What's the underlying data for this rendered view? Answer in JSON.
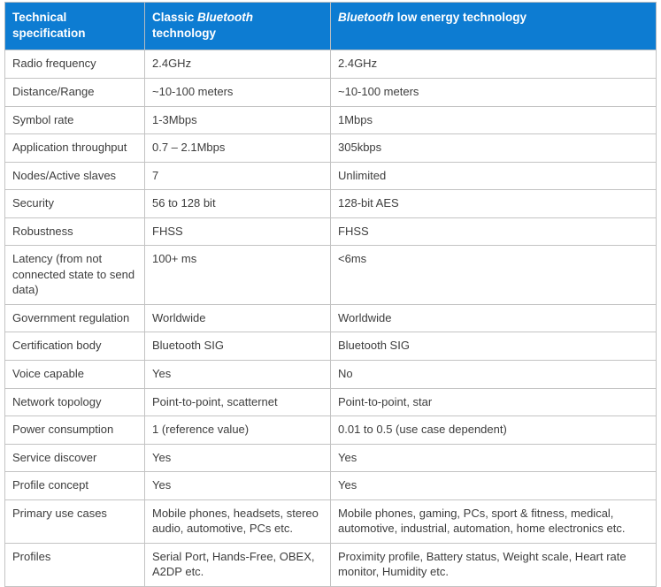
{
  "colors": {
    "header_bg": "#0d7cd2",
    "header_text": "#ffffff",
    "border": "#c3c3c3",
    "body_text": "#3d3d3d"
  },
  "table": {
    "header": [
      {
        "segments": [
          {
            "text": "Technical"
          },
          {
            "br": true
          },
          {
            "text": "specification"
          }
        ]
      },
      {
        "segments": [
          {
            "text": "Classic "
          },
          {
            "text": "Bluetooth",
            "italic": true
          },
          {
            "br": true
          },
          {
            "text": "technology"
          }
        ]
      },
      {
        "segments": [
          {
            "text": "Bluetooth",
            "italic": true
          },
          {
            "text": " low energy technology"
          }
        ]
      }
    ],
    "rows": [
      {
        "spec": "Radio frequency",
        "classic": "2.4GHz",
        "ble": "2.4GHz"
      },
      {
        "spec": "Distance/Range",
        "classic": "~10-100 meters",
        "ble": "~10-100 meters"
      },
      {
        "spec": "Symbol rate",
        "classic": "1-3Mbps",
        "ble": "1Mbps"
      },
      {
        "spec": "Application throughput",
        "classic": "0.7 – 2.1Mbps",
        "ble": "305kbps"
      },
      {
        "spec": "Nodes/Active slaves",
        "classic": "7",
        "ble": "Unlimited"
      },
      {
        "spec": "Security",
        "classic": "56 to 128 bit",
        "ble": "128-bit AES"
      },
      {
        "spec": "Robustness",
        "classic": "FHSS",
        "ble": "FHSS"
      },
      {
        "spec": "Latency (from not connected state to send data)",
        "classic": "100+ ms",
        "ble": "<6ms"
      },
      {
        "spec": "Government regulation",
        "classic": "Worldwide",
        "ble": "Worldwide"
      },
      {
        "spec": "Certification body",
        "classic": "Bluetooth SIG",
        "ble": "Bluetooth SIG"
      },
      {
        "spec": "Voice capable",
        "classic": "Yes",
        "ble": "No"
      },
      {
        "spec": "Network topology",
        "classic": "Point-to-point, scatternet",
        "ble": "Point-to-point, star"
      },
      {
        "spec": "Power consumption",
        "classic": "1 (reference value)",
        "ble": "0.01 to 0.5 (use case dependent)"
      },
      {
        "spec": "Service discover",
        "classic": "Yes",
        "ble": "Yes"
      },
      {
        "spec": "Profile concept",
        "classic": "Yes",
        "ble": "Yes"
      },
      {
        "spec": "Primary use cases",
        "classic": "Mobile phones, headsets, stereo audio, automotive, PCs etc.",
        "ble": "Mobile phones, gaming, PCs, sport & fitness, medical, automotive, industrial, automation, home electronics etc."
      },
      {
        "spec": "Profiles",
        "classic": "Serial Port, Hands-Free, OBEX, A2DP etc.",
        "ble": "Proximity profile, Battery status, Weight scale, Heart rate monitor, Humidity etc."
      }
    ]
  }
}
